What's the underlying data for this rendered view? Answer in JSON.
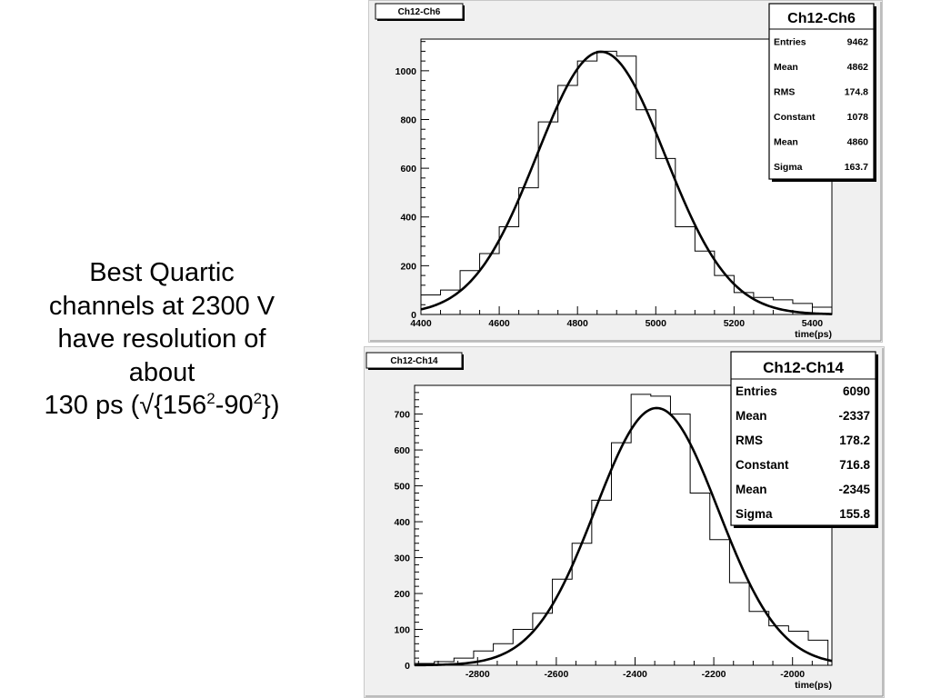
{
  "slide_text": {
    "line1": "Best Quartic",
    "line2": "channels at 2300 V",
    "line3": "have resolution of",
    "line4": "about",
    "line5_prefix": "130 ps (√{156",
    "line5_sup1": "2",
    "line5_mid": "-90",
    "line5_sup2": "2",
    "line5_suffix": "})"
  },
  "chart_data": [
    {
      "type": "bar",
      "title": "Ch12-Ch6",
      "xlabel": "time(ps)",
      "ylabel": "",
      "xlim": [
        4400,
        5450
      ],
      "ylim": [
        0,
        1130
      ],
      "x_ticks": [
        4400,
        4600,
        4800,
        5000,
        5200,
        5400
      ],
      "y_ticks": [
        0,
        200,
        400,
        600,
        800,
        1000
      ],
      "bin_edges": [
        4400,
        4450,
        4500,
        4550,
        4600,
        4650,
        4700,
        4750,
        4800,
        4850,
        4900,
        4950,
        5000,
        5050,
        5100,
        5150,
        5200,
        5250,
        5300,
        5350,
        5400,
        5450
      ],
      "values": [
        80,
        100,
        180,
        250,
        360,
        520,
        790,
        940,
        1040,
        1080,
        1060,
        840,
        640,
        360,
        260,
        160,
        90,
        70,
        60,
        45,
        30
      ],
      "fit": {
        "function": "gaus",
        "constant": 1078,
        "mean": 4860,
        "sigma": 163.7
      },
      "stats": {
        "name": "Ch12-Ch6",
        "rows": [
          {
            "label": "Entries",
            "value": "9462"
          },
          {
            "label": "Mean",
            "value": "4862"
          },
          {
            "label": "RMS",
            "value": "174.8"
          },
          {
            "label": "Constant",
            "value": "1078"
          },
          {
            "label": "Mean",
            "value": "4860"
          },
          {
            "label": "Sigma",
            "value": "163.7"
          }
        ]
      },
      "colors": {
        "hist": "#000000",
        "fit": "#000000",
        "frame_bg": "#f0f0f0",
        "plot_bg": "#ffffff"
      }
    },
    {
      "type": "bar",
      "title": "Ch12-Ch14",
      "xlabel": "time(ps)",
      "ylabel": "",
      "xlim": [
        -2960,
        -1900
      ],
      "ylim": [
        0,
        780
      ],
      "x_ticks": [
        -2800,
        -2600,
        -2400,
        -2200,
        -2000
      ],
      "y_ticks": [
        0,
        100,
        200,
        300,
        400,
        500,
        600,
        700
      ],
      "bin_edges": [
        -2960,
        -2910,
        -2860,
        -2810,
        -2760,
        -2710,
        -2660,
        -2610,
        -2560,
        -2510,
        -2460,
        -2410,
        -2360,
        -2310,
        -2260,
        -2210,
        -2160,
        -2110,
        -2060,
        -2010,
        -1960,
        -1910
      ],
      "values": [
        5,
        10,
        20,
        40,
        60,
        100,
        145,
        240,
        340,
        460,
        620,
        755,
        750,
        700,
        480,
        350,
        230,
        150,
        110,
        95,
        70
      ],
      "fit": {
        "function": "gaus",
        "constant": 716.8,
        "mean": -2345,
        "sigma": 155.8
      },
      "stats": {
        "name": "Ch12-Ch14",
        "rows": [
          {
            "label": "Entries",
            "value": "6090"
          },
          {
            "label": "Mean",
            "value": "-2337"
          },
          {
            "label": "RMS",
            "value": "178.2"
          },
          {
            "label": "Constant",
            "value": "716.8"
          },
          {
            "label": "Mean",
            "value": "-2345"
          },
          {
            "label": "Sigma",
            "value": "155.8"
          }
        ]
      },
      "colors": {
        "hist": "#000000",
        "fit": "#000000",
        "frame_bg": "#f0f0f0",
        "plot_bg": "#ffffff"
      }
    }
  ]
}
